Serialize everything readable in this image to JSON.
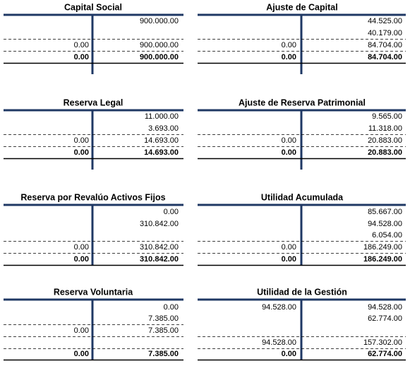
{
  "accounts": [
    {
      "title": "Capital Social",
      "rows": [
        {
          "right": "900.000.00"
        },
        {
          "left": "0.00",
          "right": "900.000.00"
        },
        {
          "left": "0.00",
          "right": "900.000.00"
        }
      ]
    },
    {
      "title": "Ajuste de Capital",
      "rows": [
        {
          "right": "44.525.00"
        },
        {
          "right": "40.179.00"
        },
        {
          "left": "0.00",
          "right": "84.704.00"
        },
        {
          "left": "0.00",
          "right": "84.704.00"
        }
      ]
    },
    {
      "title": "Reserva Legal",
      "rows": [
        {
          "right": "11.000.00"
        },
        {
          "right": "3.693.00"
        },
        {
          "left": "0.00",
          "right": "14.693.00"
        },
        {
          "left": "0.00",
          "right": "14.693.00"
        }
      ]
    },
    {
      "title": "Ajuste de Reserva Patrimonial",
      "rows": [
        {
          "right": "9.565.00"
        },
        {
          "right": "11.318.00"
        },
        {
          "left": "0.00",
          "right": "20.883.00"
        },
        {
          "left": "0.00",
          "right": "20.883.00"
        }
      ]
    },
    {
      "title": "Reserva por Revalúo Activos Fijos",
      "rows": [
        {
          "right": "0.00"
        },
        {
          "right": "310.842.00"
        },
        {
          "left": "0.00",
          "right": "310.842.00"
        },
        {
          "left": "0.00",
          "right": "310.842.00"
        }
      ]
    },
    {
      "title": "Utilidad Acumulada",
      "rows": [
        {
          "right": "85.667.00"
        },
        {
          "right": "94.528.00"
        },
        {
          "right": "6.054.00"
        },
        {
          "left": "0.00",
          "right": "186.249.00"
        },
        {
          "left": "0.00",
          "right": "186.249.00"
        }
      ]
    },
    {
      "title": "Reserva Voluntaria",
      "rows": [
        {
          "right": "0.00"
        },
        {
          "right": "7.385.00"
        },
        {
          "left": "0.00",
          "right": "7.385.00"
        },
        {
          "left": "0.00",
          "right": "7.385.00"
        }
      ]
    },
    {
      "title": "Utilidad de la Gestión",
      "rows": [
        {
          "left": "94.528.00",
          "right": "94.528.00"
        },
        {
          "right": "62.774.00"
        },
        {
          "left": "94.528.00",
          "right": "157.302.00"
        },
        {
          "left": "0.00",
          "right": "62.774.00"
        }
      ]
    }
  ]
}
